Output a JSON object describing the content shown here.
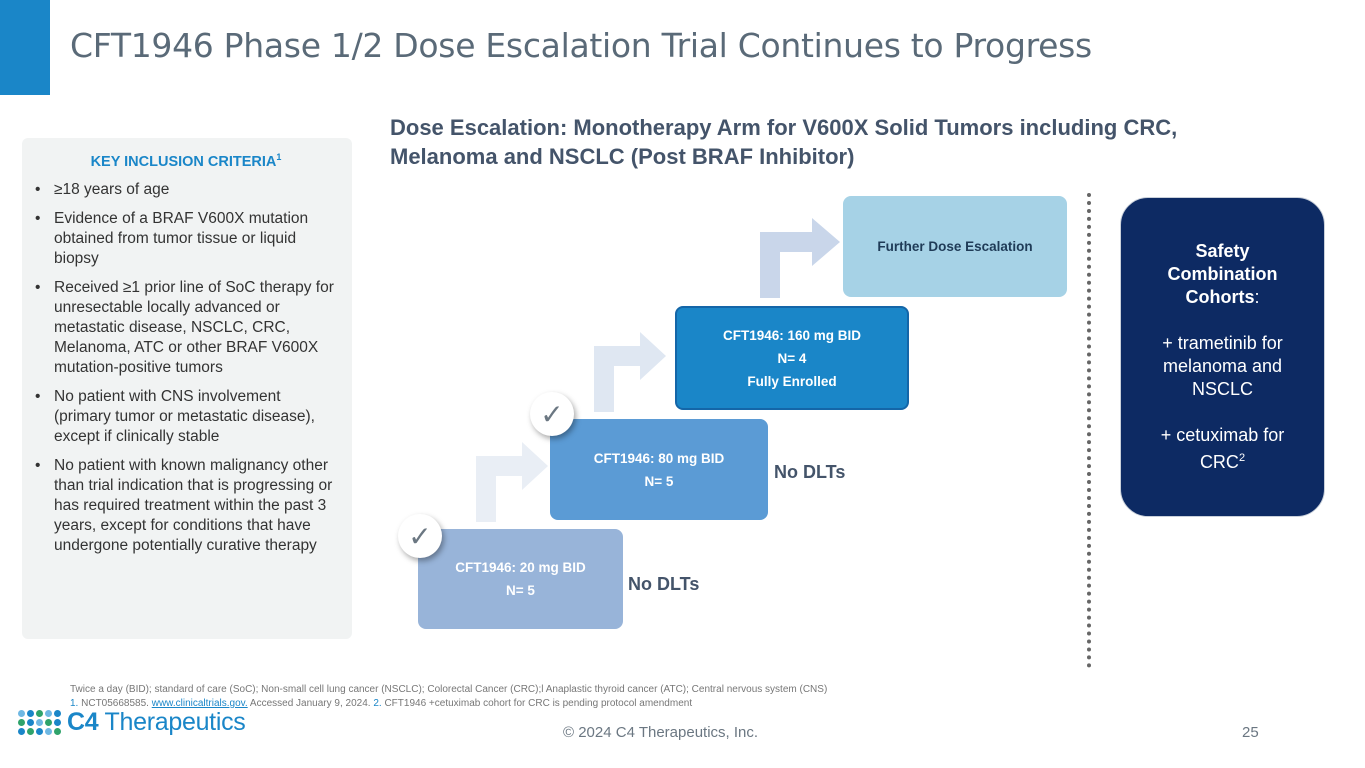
{
  "title": "CFT1946 Phase 1/2 Dose Escalation Trial Continues to Progress",
  "subtitle_line1": "Dose Escalation: Monotherapy Arm for V600X Solid Tumors including CRC,",
  "subtitle_line2": "Melanoma and NSCLC (Post BRAF Inhibitor)",
  "criteria": {
    "title": "KEY INCLUSION CRITERIA",
    "title_sup": "1",
    "bullet": "•",
    "items": [
      "≥18 years of age",
      "Evidence of a BRAF V600X mutation obtained from tumor tissue or liquid biopsy",
      "Received ≥1 prior line of SoC therapy for unresectable locally advanced or metastatic disease, NSCLC, CRC, Melanoma, ATC or other BRAF V600X mutation-positive tumors",
      "No patient with CNS involvement (primary tumor or metastatic disease), except if clinically stable",
      "No patient with known malignancy other than trial indication that is progressing or has required treatment within the past 3 years, except for conditions that have undergone potentially curative therapy"
    ]
  },
  "steps": [
    {
      "line1": "CFT1946: 20 mg BID",
      "line2": "N= 5"
    },
    {
      "line1": "CFT1946: 80 mg BID",
      "line2": "N= 5"
    },
    {
      "line1": "CFT1946: 160 mg BID",
      "line2": "N= 4",
      "line3": "Fully Enrolled"
    },
    {
      "line1": "Further Dose Escalation"
    }
  ],
  "no_dlts_1": "No DLTs",
  "no_dlts_2": "No DLTs",
  "check_glyph": "✓",
  "safety": {
    "heading1": "Safety",
    "heading2": "Combination",
    "heading3": "Cohorts",
    "heading_colon": ":",
    "item1": "+ trametinib for melanoma and NSCLC",
    "item2_text": "+ cetuximab for CRC",
    "item2_sup": "2"
  },
  "footnote": {
    "line1": "Twice a day (BID); standard of care (SoC); Non-small cell lung cancer (NSCLC); Colorectal Cancer (CRC);l Anaplastic thyroid cancer (ATC); Central nervous system (CNS)",
    "num1": "1.",
    "ref1_pre": " NCT05668585. ",
    "ref1_link": "www.clinicaltrials.gov.",
    "ref1_post": " Accessed January 9, 2024. ",
    "num2": "2.",
    "ref2": " CFT1946 +cetuximab cohort for CRC is pending protocol amendment"
  },
  "logo": {
    "prefix": "C4",
    "name": " Therapeutics"
  },
  "copyright": "©  2024 C4 Therapeutics, Inc.",
  "page_number": "25",
  "colors": {
    "accent": "#1a86c8",
    "navy": "#0d2a63"
  }
}
